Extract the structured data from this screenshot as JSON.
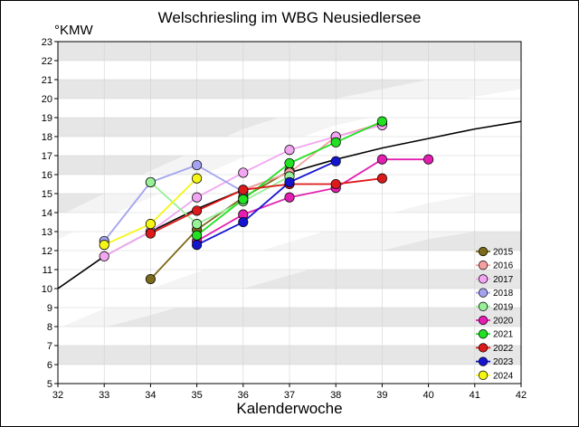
{
  "chart_data": {
    "type": "line",
    "title": "Welschriesling im WBG Neusiedlersee",
    "ylabel": "°KMW",
    "xlabel": "Kalenderwoche",
    "xlim": [
      32,
      42
    ],
    "ylim": [
      5,
      23
    ],
    "x_ticks": [
      "32",
      "33",
      "34",
      "35",
      "36",
      "37",
      "38",
      "39",
      "40",
      "41",
      "42"
    ],
    "y_ticks": [
      "5",
      "6",
      "7",
      "8",
      "9",
      "10",
      "11",
      "12",
      "13",
      "14",
      "15",
      "16",
      "17",
      "18",
      "19",
      "20",
      "21",
      "22",
      "23"
    ],
    "grid": true,
    "legend_position": "bottom-right",
    "colors": {
      "background_band": "#e6e6e6",
      "corridor": "#ffffff",
      "trend": "#000000"
    },
    "trend_line": {
      "x": [
        32,
        33,
        34,
        35,
        36,
        37,
        38,
        39,
        40,
        41,
        42
      ],
      "y": [
        10.0,
        11.7,
        13.0,
        14.2,
        15.2,
        16.1,
        16.8,
        17.4,
        17.9,
        18.4,
        18.8
      ]
    },
    "bands": [
      {
        "x": [
          32,
          34,
          36,
          38,
          40,
          42
        ],
        "upper": [
          12.6,
          14.8,
          16.9,
          18.6,
          19.7,
          20.5
        ],
        "lower": [
          7.9,
          10.0,
          11.7,
          13.2,
          14.5,
          15.4
        ]
      },
      {
        "x": [
          32,
          34,
          36,
          38,
          40,
          42
        ],
        "upper": [
          13.8,
          16.2,
          18.4,
          20.0,
          21.0,
          21.7
        ],
        "lower": [
          7.3,
          8.6,
          10.0,
          11.4,
          12.6,
          13.4
        ]
      }
    ],
    "series": [
      {
        "name": "2015",
        "color": "#7a6a1a",
        "x": [
          34,
          35,
          36,
          37
        ],
        "y": [
          10.5,
          13.1,
          14.8,
          16.2
        ]
      },
      {
        "name": "2016",
        "color": "#f4a0a0",
        "x": [
          36,
          37,
          38,
          39
        ],
        "y": [
          15.2,
          16.1,
          18.0,
          18.7
        ]
      },
      {
        "name": "2017",
        "color": "#f2a6f2",
        "x": [
          33,
          34,
          35,
          36,
          37,
          38,
          39
        ],
        "y": [
          11.7,
          13.0,
          14.8,
          16.1,
          17.3,
          18.0,
          18.6
        ]
      },
      {
        "name": "2018",
        "color": "#a3a3f0",
        "x": [
          33,
          34,
          35,
          36
        ],
        "y": [
          12.5,
          15.6,
          16.5,
          15.1
        ]
      },
      {
        "name": "2019",
        "color": "#98f098",
        "x": [
          34,
          35,
          36,
          37
        ],
        "y": [
          15.6,
          13.4,
          14.6,
          15.9
        ]
      },
      {
        "name": "2020",
        "color": "#e21fb0",
        "x": [
          35,
          36,
          37,
          38,
          39,
          40
        ],
        "y": [
          12.5,
          13.9,
          14.8,
          15.3,
          16.8,
          16.8
        ]
      },
      {
        "name": "2021",
        "color": "#22e022",
        "x": [
          35,
          36,
          37,
          38,
          39
        ],
        "y": [
          12.8,
          14.7,
          16.6,
          17.7,
          18.8
        ]
      },
      {
        "name": "2022",
        "color": "#dd1a1a",
        "x": [
          34,
          35,
          36,
          37,
          38,
          39
        ],
        "y": [
          12.9,
          14.1,
          15.2,
          15.5,
          15.5,
          15.8
        ]
      },
      {
        "name": "2023",
        "color": "#1515d0",
        "x": [
          35,
          36,
          37,
          38
        ],
        "y": [
          12.3,
          13.5,
          15.6,
          16.7
        ]
      },
      {
        "name": "2024",
        "color": "#f6f615",
        "x": [
          33,
          34,
          35
        ],
        "y": [
          12.3,
          13.4,
          15.8
        ]
      }
    ]
  }
}
